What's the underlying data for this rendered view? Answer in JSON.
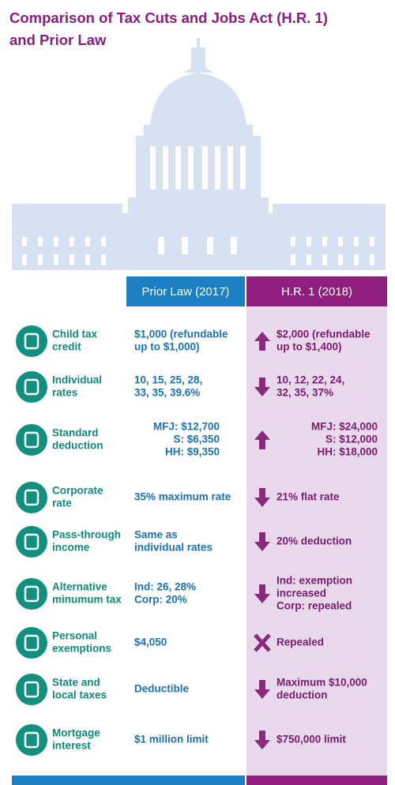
{
  "title": [
    "Comparison of Tax Cuts and Jobs Act (H.R. 1)",
    "and Prior Law"
  ],
  "columns": {
    "prior": "Prior Law (2017)",
    "hr1": "H.R. 1 (2018)"
  },
  "rows": [
    {
      "label": [
        "Child tax",
        "credit"
      ],
      "prior": [
        "$1,000 (refundable",
        " up to $1,000)"
      ],
      "hr1": [
        "$2,000 (refundable",
        " up to $1,400)"
      ],
      "change": "up"
    },
    {
      "label": [
        "Individual",
        "rates"
      ],
      "prior": [
        "10, 15, 25, 28,",
        "33, 35, 39.6%"
      ],
      "hr1": [
        "10, 12, 22, 24,",
        "32, 35, 37%"
      ],
      "change": "down"
    },
    {
      "label": [
        "Standard",
        "deduction"
      ],
      "prior": [
        "MFJ: $12,700",
        "S:   $6,350",
        "HH:   $9,350"
      ],
      "hr1": [
        "MFJ: $24,000",
        "S: $12,000",
        "HH: $18,000"
      ],
      "change": "up",
      "align": "end"
    },
    {
      "label": [
        "Corporate",
        "rate"
      ],
      "prior": [
        "35% maximum rate"
      ],
      "hr1": [
        "21% flat rate"
      ],
      "change": "down"
    },
    {
      "label": [
        "Pass-through",
        "income"
      ],
      "prior": [
        "Same as",
        "individual rates"
      ],
      "hr1": [
        "20% deduction"
      ],
      "change": "down"
    },
    {
      "label": [
        "Alternative",
        "minumum tax"
      ],
      "prior": [
        "Ind: 26, 28%",
        "Corp: 20%"
      ],
      "hr1": [
        "Ind: exemption",
        "increased",
        "Corp: repealed"
      ],
      "change": "down"
    },
    {
      "label": [
        "Personal",
        "exemptions"
      ],
      "prior": [
        "$4,050"
      ],
      "hr1": [
        "Repealed"
      ],
      "change": "x"
    },
    {
      "label": [
        "State and",
        "local taxes"
      ],
      "prior": [
        "Deductible"
      ],
      "hr1": [
        "Maximum $10,000",
        "deduction"
      ],
      "change": "down"
    },
    {
      "label": [
        "Mortgage",
        "interest"
      ],
      "prior": [
        "$1 million limit"
      ],
      "hr1": [
        "$750,000 limit"
      ],
      "change": "down"
    }
  ]
}
